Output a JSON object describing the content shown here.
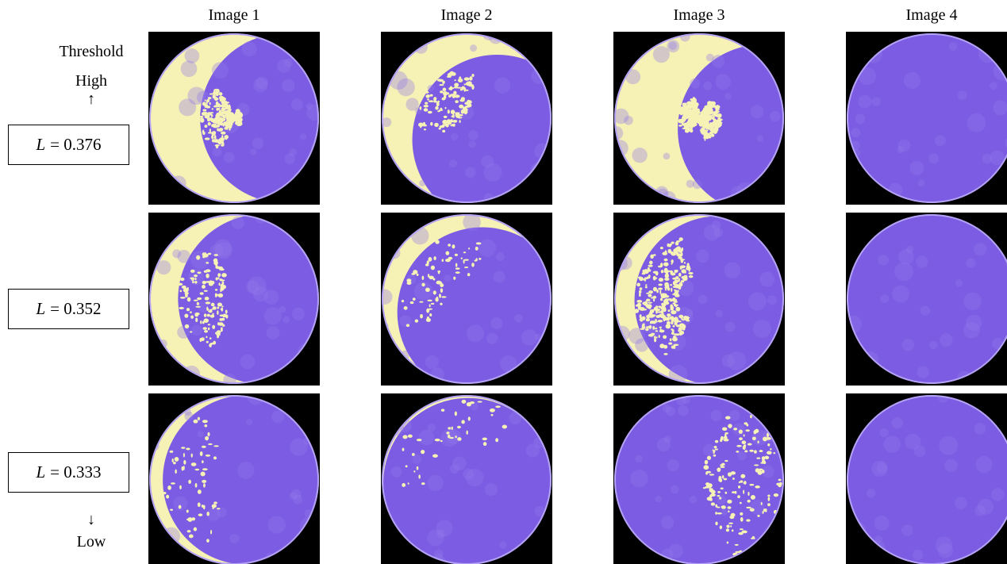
{
  "columns": [
    "Image 1",
    "Image 2",
    "Image 3",
    "Image 4"
  ],
  "side": {
    "top": [
      "Threshold",
      "High",
      "↑"
    ],
    "bottom": [
      "↓",
      "Low"
    ]
  },
  "rows": [
    {
      "variable": "L",
      "equation": "= 0.376"
    },
    {
      "variable": "L",
      "equation": "= 0.352"
    },
    {
      "variable": "L",
      "equation": "= 0.333"
    }
  ]
}
